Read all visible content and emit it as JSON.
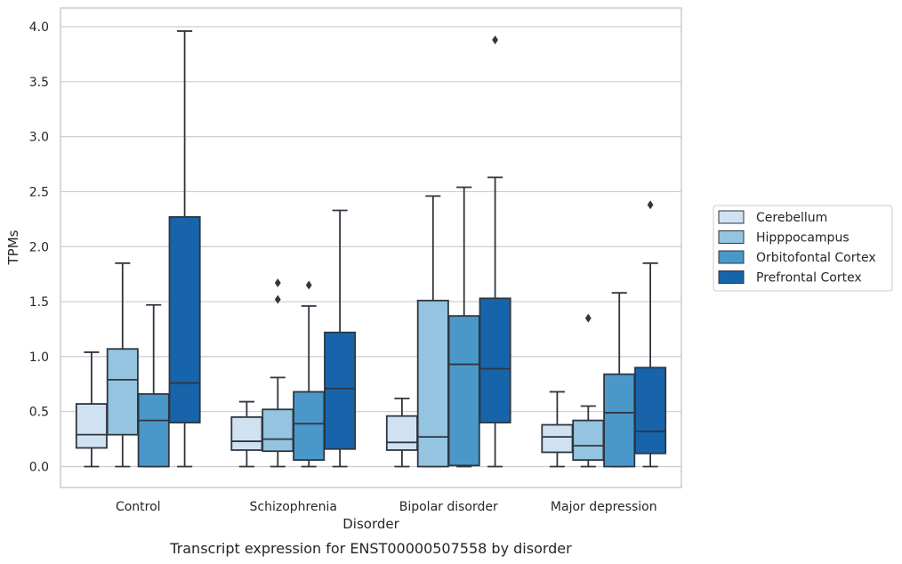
{
  "caption": "Transcript expression for ENST00000507558 by disorder",
  "chart_data": {
    "type": "boxplot",
    "xlabel": "Disorder",
    "ylabel": "TPMs",
    "ylim": [
      -0.19,
      4.17
    ],
    "yticks": [
      0.0,
      0.5,
      1.0,
      1.5,
      2.0,
      2.5,
      3.0,
      3.5,
      4.0
    ],
    "ytick_labels": [
      "0.0",
      "0.5",
      "1.0",
      "1.5",
      "2.0",
      "2.5",
      "3.0",
      "3.5",
      "4.0"
    ],
    "grid": "horizontal",
    "legend_position": "right",
    "categories": [
      "Control",
      "Schizophrenia",
      "Bipolar disorder",
      "Major depression"
    ],
    "series": [
      {
        "name": "Cerebellum",
        "color": "#d0e1f2",
        "boxes": [
          {
            "min": 0.0,
            "q1": 0.17,
            "median": 0.29,
            "q3": 0.57,
            "max": 1.04,
            "outliers": []
          },
          {
            "min": 0.0,
            "q1": 0.15,
            "median": 0.23,
            "q3": 0.45,
            "max": 0.59,
            "outliers": []
          },
          {
            "min": 0.0,
            "q1": 0.15,
            "median": 0.22,
            "q3": 0.46,
            "max": 0.62,
            "outliers": []
          },
          {
            "min": 0.0,
            "q1": 0.13,
            "median": 0.27,
            "q3": 0.38,
            "max": 0.68,
            "outliers": []
          }
        ]
      },
      {
        "name": "Hipppocampus",
        "color": "#94c4df",
        "boxes": [
          {
            "min": 0.0,
            "q1": 0.29,
            "median": 0.79,
            "q3": 1.07,
            "max": 1.85,
            "outliers": []
          },
          {
            "min": 0.0,
            "q1": 0.14,
            "median": 0.25,
            "q3": 0.52,
            "max": 0.81,
            "outliers": [
              1.52,
              1.67
            ]
          },
          {
            "min": 0.0,
            "q1": 0.0,
            "median": 0.27,
            "q3": 1.51,
            "max": 2.46,
            "outliers": []
          },
          {
            "min": 0.0,
            "q1": 0.06,
            "median": 0.19,
            "q3": 0.42,
            "max": 0.55,
            "outliers": [
              1.35
            ]
          }
        ]
      },
      {
        "name": "Orbitofontal Cortex",
        "color": "#4a98c9",
        "boxes": [
          {
            "min": 0.0,
            "q1": 0.0,
            "median": 0.42,
            "q3": 0.66,
            "max": 1.47,
            "outliers": []
          },
          {
            "min": 0.0,
            "q1": 0.06,
            "median": 0.39,
            "q3": 0.68,
            "max": 1.46,
            "outliers": [
              1.65
            ]
          },
          {
            "min": 0.0,
            "q1": 0.01,
            "median": 0.93,
            "q3": 1.37,
            "max": 2.54,
            "outliers": []
          },
          {
            "min": 0.0,
            "q1": 0.0,
            "median": 0.49,
            "q3": 0.84,
            "max": 1.58,
            "outliers": []
          }
        ]
      },
      {
        "name": "Prefrontal Cortex",
        "color": "#1764ab",
        "boxes": [
          {
            "min": 0.0,
            "q1": 0.4,
            "median": 0.76,
            "q3": 2.27,
            "max": 3.96,
            "outliers": []
          },
          {
            "min": 0.0,
            "q1": 0.16,
            "median": 0.71,
            "q3": 1.22,
            "max": 2.33,
            "outliers": []
          },
          {
            "min": 0.0,
            "q1": 0.4,
            "median": 0.89,
            "q3": 1.53,
            "max": 2.63,
            "outliers": [
              3.88
            ]
          },
          {
            "min": 0.0,
            "q1": 0.12,
            "median": 0.32,
            "q3": 0.9,
            "max": 1.85,
            "outliers": [
              2.38
            ]
          }
        ]
      }
    ]
  }
}
